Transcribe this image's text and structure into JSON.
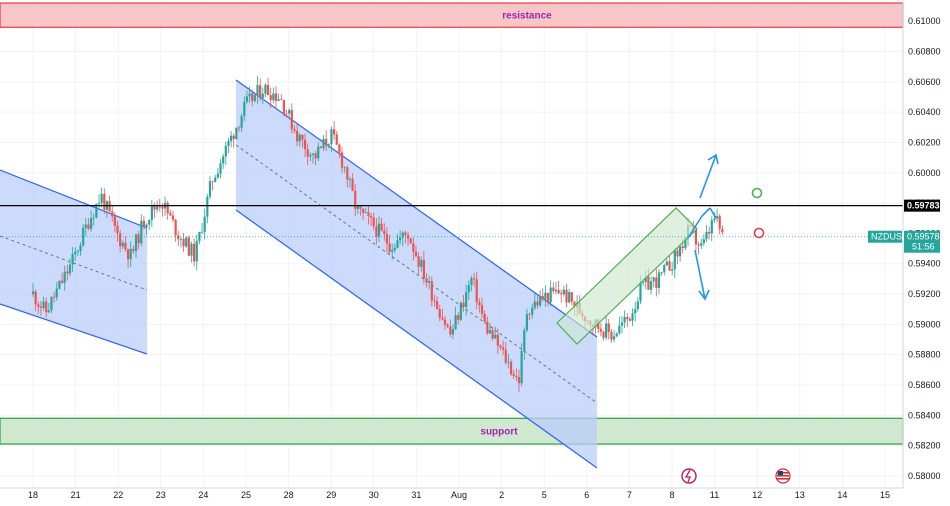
{
  "chart_data": {
    "type": "candlestick",
    "symbol": "NZDUSD",
    "current_price": "0.59578",
    "countdown": "51:56",
    "level_line": "0.59783",
    "colors": {
      "up": "#26a69a",
      "down": "#ef5350",
      "channel": "#2962ff",
      "channel_fill": "#bbcdfb",
      "resistance_fill": "#f7c6c6",
      "resistance_border": "#f23645",
      "support_fill": "#cfe8cf",
      "support_border": "#2e9e3e",
      "rising_channel": "#4caf50",
      "symbol_tag": "#26a69a",
      "level_tag": "#000000",
      "current_line": "#26a69a"
    },
    "y_range": [
      0.5792,
      0.6114
    ],
    "y_ticks": [
      "0.61000",
      "0.60800",
      "0.60600",
      "0.60400",
      "0.60200",
      "0.60000",
      "0.59800",
      "0.59600",
      "0.59400",
      "0.59200",
      "0.59000",
      "0.58800",
      "0.58600",
      "0.58400",
      "0.58200",
      "0.58000"
    ],
    "x_ticks": [
      "18",
      "21",
      "22",
      "23",
      "24",
      "25",
      "28",
      "29",
      "30",
      "31",
      "Aug",
      "2",
      "5",
      "6",
      "7",
      "8",
      "11",
      "12",
      "13",
      "14",
      "15"
    ],
    "zones": [
      {
        "name": "resistance",
        "label": "resistance",
        "low": 0.6096,
        "high": 0.6112
      },
      {
        "name": "support",
        "label": "support",
        "low": 0.5821,
        "high": 0.5838
      }
    ],
    "price_path": [
      [
        0,
        0.592
      ],
      [
        0.3,
        0.5908
      ],
      [
        0.9,
        0.594
      ],
      [
        1.3,
        0.5968
      ],
      [
        1.6,
        0.5985
      ],
      [
        2.0,
        0.5958
      ],
      [
        2.3,
        0.5945
      ],
      [
        2.6,
        0.5968
      ],
      [
        3.0,
        0.5982
      ],
      [
        3.4,
        0.596
      ],
      [
        3.8,
        0.5945
      ],
      [
        4.2,
        0.5995
      ],
      [
        4.6,
        0.602
      ],
      [
        5.0,
        0.6045
      ],
      [
        5.4,
        0.6056
      ],
      [
        5.8,
        0.605
      ],
      [
        6.2,
        0.6025
      ],
      [
        6.6,
        0.601
      ],
      [
        7.0,
        0.6025
      ],
      [
        7.3,
        0.6005
      ],
      [
        7.6,
        0.5975
      ],
      [
        8.0,
        0.5965
      ],
      [
        8.4,
        0.5952
      ],
      [
        8.8,
        0.596
      ],
      [
        9.3,
        0.5925
      ],
      [
        9.8,
        0.5893
      ],
      [
        10.3,
        0.593
      ],
      [
        10.6,
        0.59
      ],
      [
        11.0,
        0.5882
      ],
      [
        11.4,
        0.5862
      ],
      [
        11.6,
        0.591
      ],
      [
        12.0,
        0.5918
      ],
      [
        12.4,
        0.5922
      ],
      [
        12.8,
        0.591
      ],
      [
        13.2,
        0.59
      ],
      [
        13.6,
        0.5893
      ],
      [
        14.0,
        0.5905
      ],
      [
        14.3,
        0.5925
      ],
      [
        14.7,
        0.593
      ],
      [
        15.1,
        0.5945
      ],
      [
        15.4,
        0.5962
      ],
      [
        15.7,
        0.595
      ],
      [
        16.0,
        0.597
      ],
      [
        16.2,
        0.5958
      ]
    ]
  }
}
